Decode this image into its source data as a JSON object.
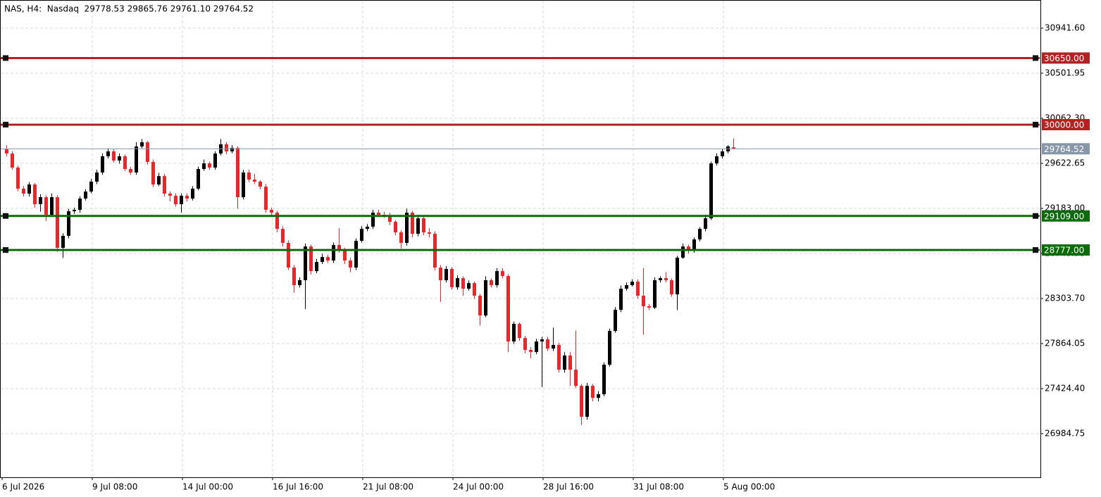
{
  "chart_data": {
    "type": "candlestick",
    "header": "NAS, H4:  Nasdaq  29778.53 29865.76 29761.10 29764.52",
    "open": [
      29760,
      29718,
      29581,
      29375,
      29327,
      29416,
      29224,
      29292,
      29121,
      29292,
      28798,
      28915,
      29155,
      29169,
      29279,
      29347,
      29444,
      29533,
      29691,
      29739,
      29650,
      29691,
      29567,
      29533,
      29787,
      29828,
      29636,
      29416,
      29498,
      29327,
      29306,
      29224,
      29306,
      29279,
      29375,
      29567,
      29622,
      29581,
      29718,
      29808,
      29739,
      29773,
      29292,
      29533,
      29464,
      29444,
      29395,
      29169,
      29141,
      28983,
      28846,
      28605,
      28434,
      28482,
      28811,
      28571,
      28660,
      28708,
      28674,
      28825,
      28777,
      28674,
      28605,
      28866,
      28983,
      29004,
      29141,
      29121,
      29114,
      29052,
      28949,
      28846,
      29141,
      28935,
      29086,
      28949,
      28935,
      28605,
      28482,
      28592,
      28413,
      28502,
      28399,
      28454,
      28331,
      28138,
      28482,
      28434,
      28571,
      28523,
      27884,
      28056,
      27918,
      27802,
      27781,
      27884,
      27905,
      27815,
      27850,
      27609,
      27747,
      27609,
      27451,
      27149,
      27451,
      27334,
      27369,
      27657,
      27987,
      28193,
      28399,
      28434,
      28468,
      28331,
      28228,
      28214,
      28482,
      28502,
      28482,
      28344,
      28702,
      28811,
      28777,
      28880,
      28983,
      29086,
      29622,
      29691,
      29739,
      29778.53
    ],
    "high": [
      29800,
      29740,
      29600,
      29400,
      29440,
      29430,
      29320,
      29310,
      29330,
      29310,
      28940,
      29180,
      29190,
      29300,
      29370,
      29470,
      29560,
      29720,
      29770,
      29760,
      29720,
      29710,
      29590,
      29830,
      29860,
      29840,
      29660,
      29530,
      29520,
      29350,
      29330,
      29330,
      29330,
      29400,
      29590,
      29660,
      29640,
      29740,
      29860,
      29830,
      29800,
      29790,
      29560,
      29560,
      29520,
      29460,
      29420,
      29190,
      29160,
      29010,
      28870,
      28630,
      28510,
      28840,
      28830,
      28690,
      28740,
      28730,
      28850,
      28990,
      28800,
      28700,
      28890,
      29010,
      29030,
      29170,
      29170,
      29150,
      29140,
      29070,
      28970,
      29180,
      29160,
      29120,
      29100,
      28990,
      28960,
      28630,
      28620,
      28610,
      28530,
      28520,
      28480,
      28470,
      28350,
      28520,
      28500,
      28600,
      28600,
      28540,
      28080,
      28070,
      27940,
      27830,
      27910,
      27930,
      27930,
      28020,
      27870,
      27780,
      27780,
      27990,
      27470,
      27480,
      27470,
      27400,
      27680,
      28010,
      28220,
      28430,
      28460,
      28490,
      28490,
      28600,
      28250,
      28510,
      28520,
      28560,
      28500,
      28720,
      28840,
      28830,
      28900,
      29000,
      29120,
      29640,
      29720,
      29760,
      29800,
      29865.76
    ],
    "low": [
      29690,
      29560,
      29350,
      29300,
      29300,
      29190,
      29150,
      29060,
      29100,
      28760,
      28700,
      28890,
      29130,
      29140,
      29260,
      29330,
      29420,
      29510,
      29670,
      29630,
      29620,
      29550,
      29510,
      29510,
      29770,
      29610,
      29390,
      29400,
      29300,
      29250,
      29200,
      29140,
      29250,
      29260,
      29360,
      29550,
      29560,
      29560,
      29700,
      29710,
      29720,
      29180,
      29270,
      29440,
      29420,
      29370,
      29140,
      29100,
      28950,
      28810,
      28580,
      28360,
      28410,
      28200,
      28540,
      28550,
      28640,
      28650,
      28650,
      28750,
      28640,
      28560,
      28580,
      28850,
      28960,
      28980,
      29100,
      29090,
      29020,
      28920,
      28790,
      28820,
      28900,
      28910,
      28920,
      28900,
      28580,
      28270,
      28460,
      28390,
      28390,
      28330,
      28380,
      28300,
      28040,
      28120,
      28410,
      28410,
      28500,
      27780,
      27860,
      27890,
      27770,
      27720,
      27760,
      27440,
      27790,
      27790,
      27580,
      27580,
      27450,
      27430,
      27070,
      27120,
      27300,
      27300,
      27350,
      27640,
      27970,
      28170,
      28380,
      28420,
      28300,
      27950,
      28190,
      28200,
      28460,
      28460,
      28320,
      28190,
      28690,
      28740,
      28750,
      28860,
      28960,
      29070,
      29600,
      29670,
      29720,
      29761.1
    ],
    "close": [
      29718,
      29581,
      29375,
      29327,
      29416,
      29224,
      29292,
      29121,
      29292,
      28798,
      28915,
      29155,
      29169,
      29279,
      29347,
      29444,
      29533,
      29691,
      29739,
      29650,
      29691,
      29567,
      29533,
      29787,
      29828,
      29636,
      29416,
      29498,
      29327,
      29306,
      29224,
      29306,
      29279,
      29375,
      29567,
      29622,
      29581,
      29718,
      29808,
      29739,
      29773,
      29292,
      29533,
      29464,
      29444,
      29395,
      29169,
      29141,
      28983,
      28846,
      28605,
      28434,
      28482,
      28811,
      28571,
      28660,
      28708,
      28674,
      28825,
      28777,
      28674,
      28605,
      28866,
      28983,
      29004,
      29141,
      29121,
      29114,
      29052,
      28949,
      28846,
      29141,
      28935,
      29086,
      28949,
      28935,
      28605,
      28482,
      28592,
      28413,
      28502,
      28399,
      28454,
      28331,
      28138,
      28482,
      28434,
      28571,
      28523,
      27884,
      28056,
      27918,
      27802,
      27781,
      27884,
      27905,
      27815,
      27850,
      27609,
      27747,
      27609,
      27451,
      27149,
      27451,
      27334,
      27369,
      27657,
      27987,
      28193,
      28399,
      28434,
      28468,
      28331,
      28228,
      28214,
      28482,
      28502,
      28482,
      28344,
      28702,
      28811,
      28777,
      28880,
      28983,
      29086,
      29622,
      29691,
      29739,
      29787,
      29764.52
    ],
    "up_color": "#000000",
    "down_color": "#e8262c",
    "ylim": [
      26558.9,
      31216.4
    ],
    "yticks": [
      {
        "value": 30941.6,
        "label": "30941.60"
      },
      {
        "value": 30501.95,
        "label": "30501.95"
      },
      {
        "value": 30062.3,
        "label": "30062.30"
      },
      {
        "value": 29622.65,
        "label": "29622.65"
      },
      {
        "value": 29183,
        "label": "29183.00"
      },
      {
        "value": 28743.35,
        "label": "28743.35"
      },
      {
        "value": 28303.7,
        "label": "28303.70"
      },
      {
        "value": 27864.05,
        "label": "27864.05"
      },
      {
        "value": 27424.4,
        "label": "27424.40"
      },
      {
        "value": 26984.75,
        "label": "26984.75"
      }
    ],
    "xticks": [
      {
        "value": 0,
        "label": "6 Jul 2026"
      },
      {
        "value": 16,
        "label": "9 Jul 08:00"
      },
      {
        "value": 32,
        "label": "14 Jul 00:00"
      },
      {
        "value": 48,
        "label": "16 Jul 16:00"
      },
      {
        "value": 64,
        "label": "21 Jul 08:00"
      },
      {
        "value": 80,
        "label": "24 Jul 00:00"
      },
      {
        "value": 96,
        "label": "28 Jul 16:00"
      },
      {
        "value": 112,
        "label": "31 Jul 08:00"
      },
      {
        "value": 128,
        "label": "5 Aug 00:00"
      }
    ],
    "grid": true,
    "levels": [
      {
        "value": 30650,
        "label": "30650.00",
        "color": "#b22222"
      },
      {
        "value": 30000,
        "label": "30000.00",
        "color": "#b22222"
      },
      {
        "value": 29109,
        "label": "29109.00",
        "color": "#0b6b0b"
      },
      {
        "value": 28777,
        "label": "28777.00",
        "color": "#0b6b0b"
      }
    ],
    "price_line": 29764.52,
    "price_line_color": "#8797a8"
  }
}
